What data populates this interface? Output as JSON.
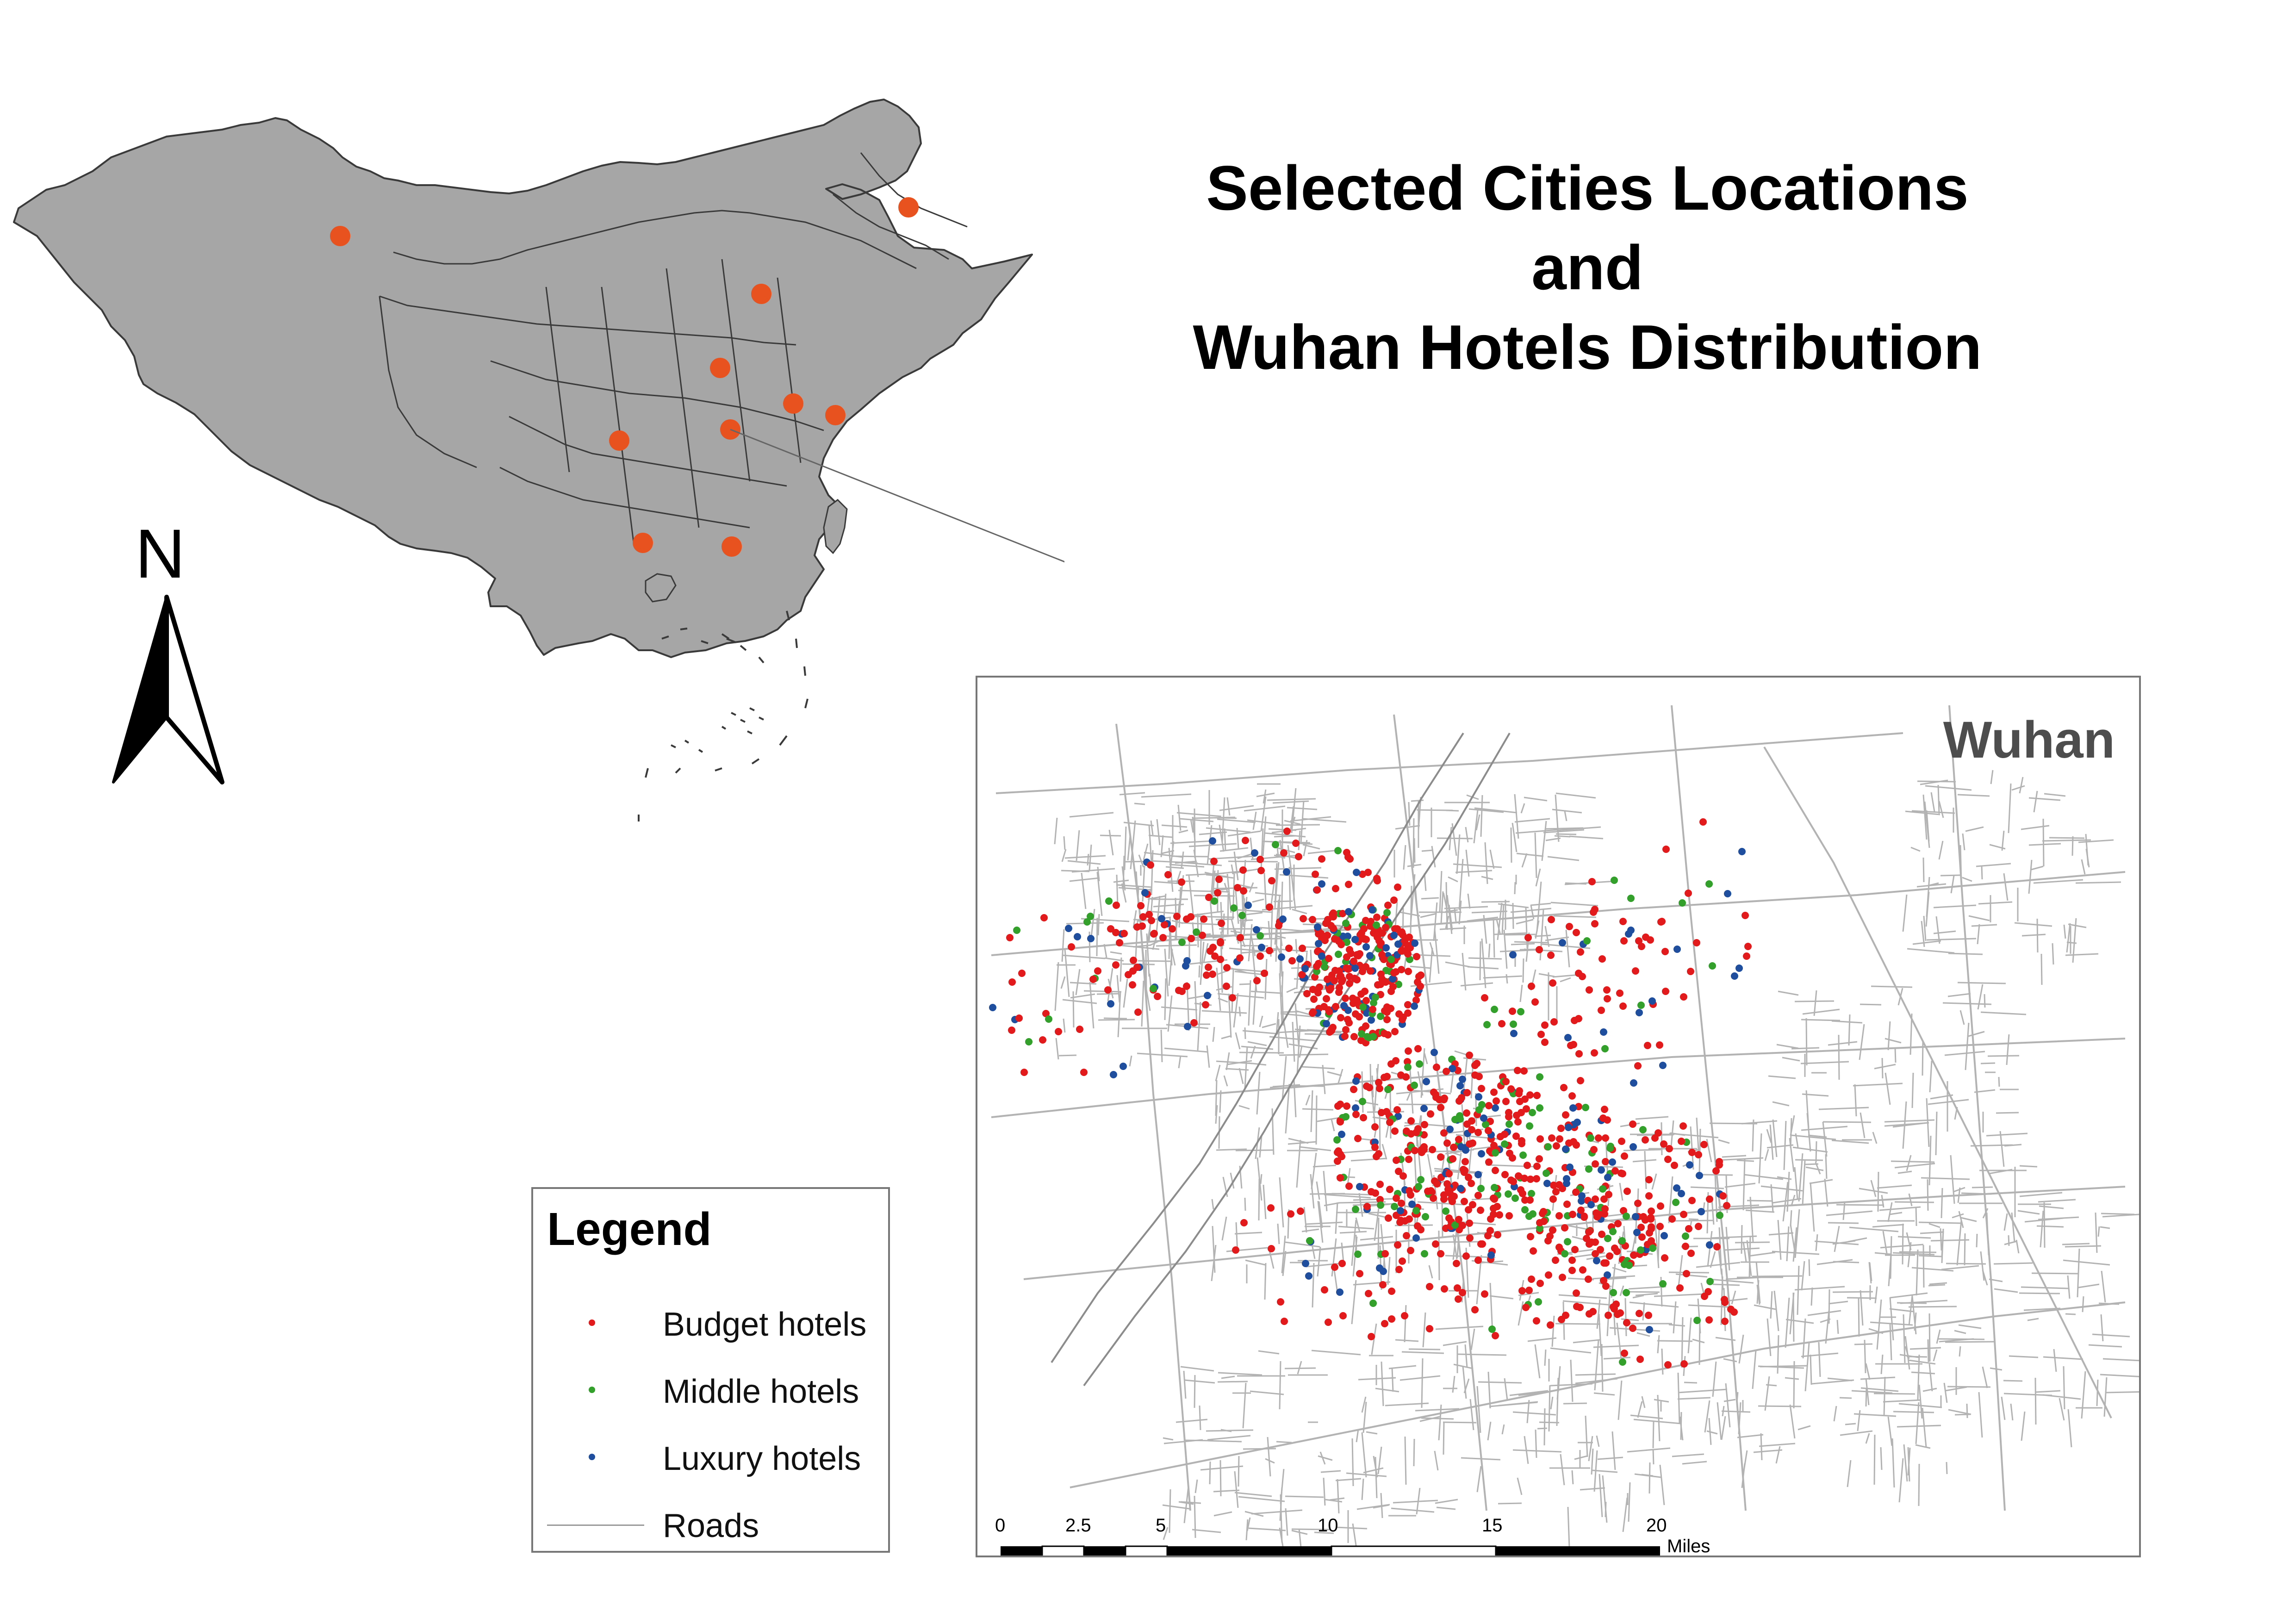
{
  "title": {
    "line1": "Selected Cities Locations",
    "line2": "and",
    "line3": "Wuhan Hotels Distribution"
  },
  "north_arrow": {
    "label": "N"
  },
  "china_map": {
    "fill_color": "#a6a6a6",
    "border_color": "#3a3a3a",
    "city_marker_color": "#e8521e",
    "city_count": 10
  },
  "inset": {
    "title": "Wuhan",
    "road_color": "#b3b3b3",
    "scale_bar": {
      "ticks": [
        "0",
        "2.5",
        "5",
        "10",
        "15",
        "20"
      ],
      "unit": "Miles"
    }
  },
  "legend": {
    "title": "Legend",
    "items": [
      {
        "label": "Budget hotels",
        "color": "#e31a1c",
        "symbol": "point"
      },
      {
        "label": "Middle hotels",
        "color": "#33a02c",
        "symbol": "point"
      },
      {
        "label": "Luxury hotels",
        "color": "#1f4e9e",
        "symbol": "point"
      },
      {
        "label": "Roads",
        "color": "#9a9a9a",
        "symbol": "line"
      }
    ]
  }
}
